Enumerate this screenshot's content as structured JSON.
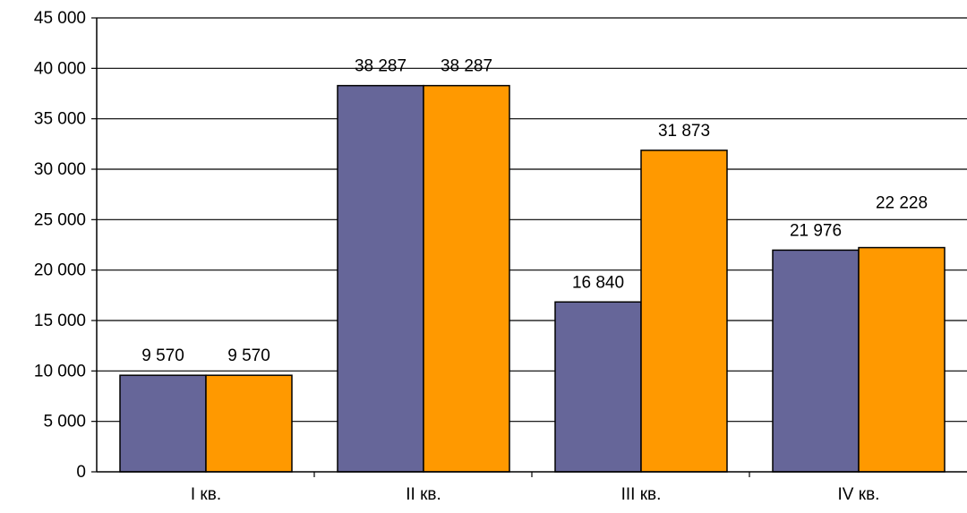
{
  "chart_data": {
    "type": "bar",
    "title": "",
    "xlabel": "",
    "ylabel": "",
    "categories": [
      "I кв.",
      "II кв.",
      "III кв.",
      "IV кв."
    ],
    "series": [
      {
        "values": [
          9570,
          38287,
          16840,
          21976
        ],
        "data_labels": [
          "9 570",
          "38 287",
          "16 840",
          "21 976"
        ],
        "color": "#666699"
      },
      {
        "values": [
          9570,
          38287,
          31873,
          22228
        ],
        "data_labels": [
          "9 570",
          "38 287",
          "31 873",
          "22 228"
        ],
        "color": "#FF9900"
      }
    ],
    "ylim": [
      0,
      45000
    ],
    "yticks": [
      0,
      5000,
      10000,
      15000,
      20000,
      25000,
      30000,
      35000,
      40000,
      45000
    ],
    "ytick_labels": [
      "0",
      "5 000",
      "10 000",
      "15 000",
      "20 000",
      "25 000",
      "30 000",
      "35 000",
      "40 000",
      "45 000"
    ],
    "grid": true,
    "legend": "none"
  }
}
